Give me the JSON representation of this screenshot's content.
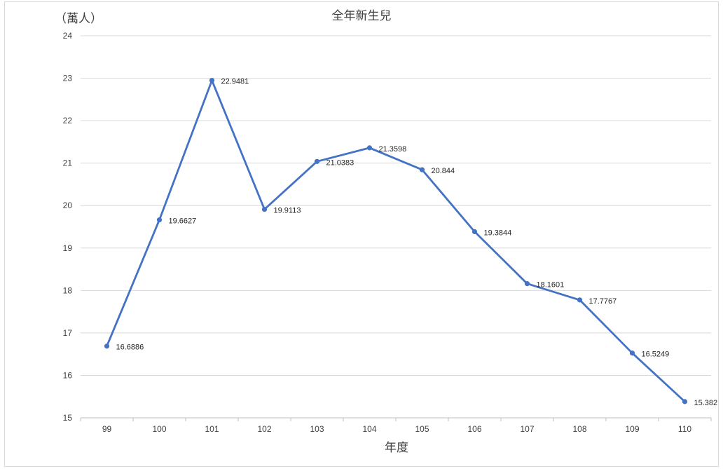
{
  "chart_data": {
    "type": "line",
    "title": "全年新生兒",
    "unit_label": "（萬人）",
    "xlabel": "年度",
    "ylabel": "",
    "ylim": [
      15,
      24
    ],
    "yticks": [
      "15",
      "16",
      "17",
      "18",
      "19",
      "20",
      "21",
      "22",
      "23",
      "24"
    ],
    "categories": [
      "99",
      "100",
      "101",
      "102",
      "103",
      "104",
      "105",
      "106",
      "107",
      "108",
      "109",
      "110"
    ],
    "series": [
      {
        "values": [
          16.6886,
          19.6627,
          22.9481,
          19.9113,
          21.0383,
          21.3598,
          20.844,
          19.3844,
          18.1601,
          17.7767,
          16.5249,
          15.382
        ],
        "labels": [
          "16.6886",
          "19.6627",
          "22.9481",
          "19.9113",
          "21.0383",
          "21.3598",
          "20.844",
          "19.3844",
          "18.1601",
          "17.7767",
          "16.5249",
          "15.382"
        ]
      }
    ],
    "grid": true,
    "legend": "none",
    "colors": {
      "line": "#4472c4",
      "grid": "#d9d9d9",
      "axis": "#bfbfbf",
      "text": "#404040"
    }
  }
}
